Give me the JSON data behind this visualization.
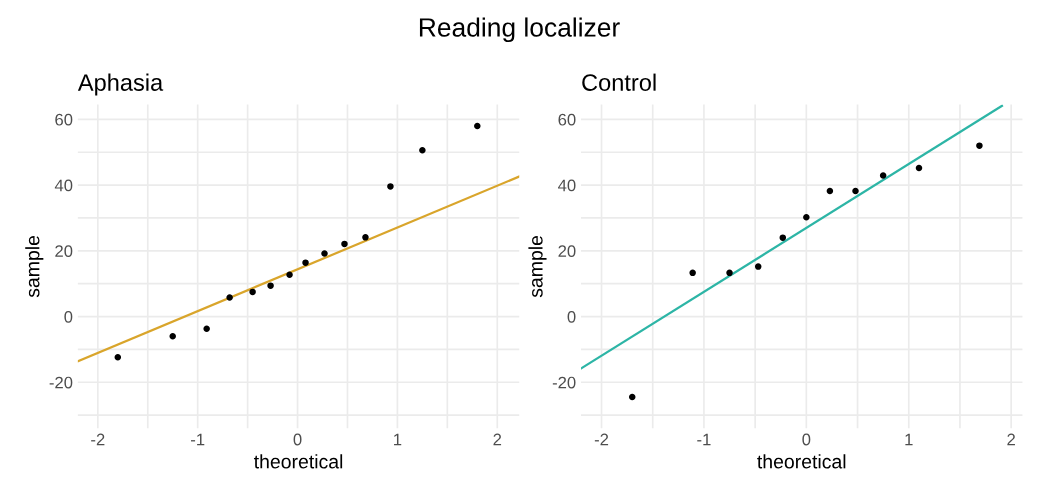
{
  "chart_data": [
    {
      "type": "scatter",
      "title": "Aphasia",
      "xlabel": "theoretical",
      "ylabel": "sample",
      "grid": true,
      "annotations": [
        "Reading localizer"
      ],
      "series": [
        {
          "type": "scatter",
          "marker": "circle",
          "color": "#000000",
          "x": [
            -1.8,
            -1.25,
            -0.91,
            -0.68,
            -0.45,
            -0.27,
            -0.08,
            0.08,
            0.27,
            0.47,
            0.68,
            0.93,
            1.25,
            1.8
          ],
          "values": [
            -12.4,
            -6.0,
            -3.7,
            5.8,
            7.5,
            9.4,
            12.7,
            16.4,
            19.2,
            22.1,
            24.1,
            39.6,
            50.6,
            58.0
          ]
        },
        {
          "type": "line",
          "color": "#d9a52b",
          "x": [
            -2.2,
            2.22
          ],
          "values": [
            -13.6,
            42.6
          ]
        }
      ],
      "xlim": [
        -2.2,
        2.22
      ],
      "ylim": [
        -34,
        64.5
      ],
      "xticks": [
        -2,
        {
          "value": -1.5,
          "label": null
        },
        -1,
        {
          "value": -0.5,
          "label": null
        },
        0,
        {
          "value": 0.5,
          "label": null
        },
        1,
        {
          "value": 1.5,
          "label": null
        },
        2
      ],
      "yticks": [
        {
          "value": -30,
          "label": null
        },
        -20,
        {
          "value": -10,
          "label": null
        },
        0,
        {
          "value": 10,
          "label": null
        },
        20,
        {
          "value": 30,
          "label": null
        },
        40,
        {
          "value": 50,
          "label": null
        },
        60
      ]
    },
    {
      "type": "scatter",
      "title": "Control",
      "xlabel": "theoretical",
      "ylabel": "sample",
      "grid": true,
      "series": [
        {
          "type": "scatter",
          "marker": "circle",
          "color": "#000000",
          "x": [
            -1.7,
            -1.11,
            -0.75,
            -0.47,
            -0.23,
            0.0,
            0.23,
            0.48,
            0.75,
            1.1,
            1.69
          ],
          "values": [
            -24.5,
            13.3,
            13.3,
            15.2,
            24.0,
            30.2,
            38.2,
            38.2,
            42.9,
            45.2,
            52.0
          ]
        },
        {
          "type": "line",
          "color": "#2db5a6",
          "x": [
            -2.2,
            1.91
          ],
          "values": [
            -15.8,
            64.1
          ]
        }
      ],
      "xlim": [
        -2.2,
        2.11
      ],
      "ylim": [
        -34,
        64.5
      ],
      "xticks": [
        -2,
        {
          "value": -1.5,
          "label": null
        },
        -1,
        {
          "value": -0.5,
          "label": null
        },
        0,
        {
          "value": 0.5,
          "label": null
        },
        1,
        {
          "value": 1.5,
          "label": null
        },
        2
      ],
      "yticks": [
        {
          "value": -30,
          "label": null
        },
        -20,
        {
          "value": -10,
          "label": null
        },
        0,
        {
          "value": 10,
          "label": null
        },
        20,
        {
          "value": 30,
          "label": null
        },
        40,
        {
          "value": 50,
          "label": null
        },
        60
      ]
    }
  ]
}
